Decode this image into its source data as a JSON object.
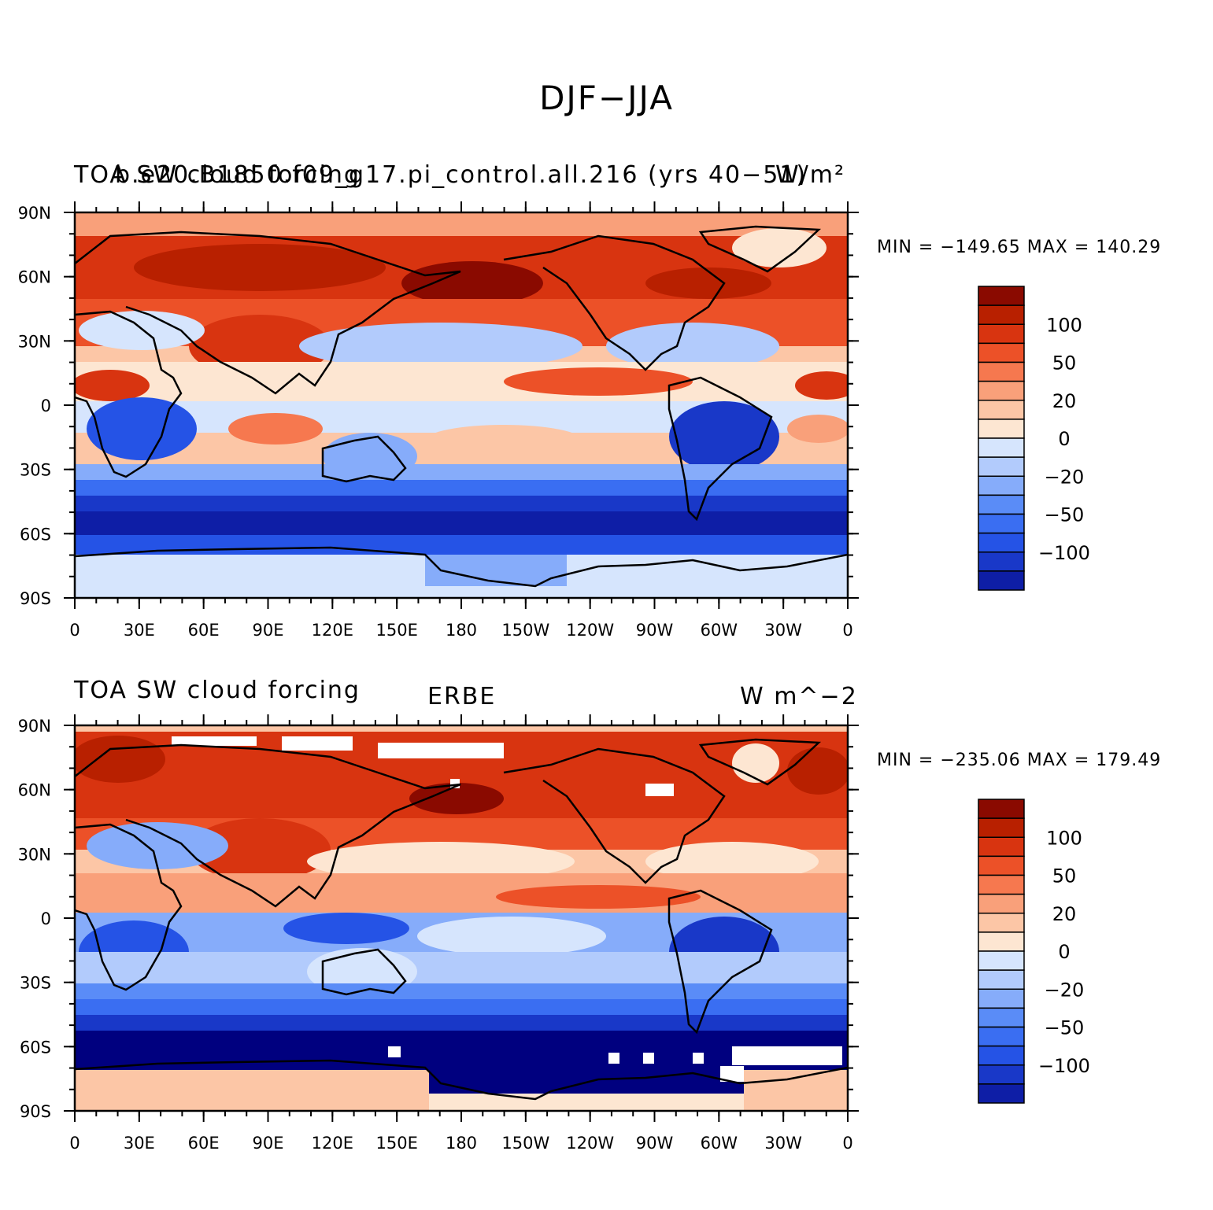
{
  "title": "DJF−JJA",
  "colors": {
    "levels": [
      "#00007f",
      "#0e1ea6",
      "#1938c8",
      "#2553e6",
      "#3a6ef2",
      "#5a8cf7",
      "#86acfa",
      "#b2cbfc",
      "#d6e5fd",
      "#fde6d2",
      "#fcc6a6",
      "#f9a07a",
      "#f6784f",
      "#ec5128",
      "#d83410",
      "#b82000",
      "#8a0a00"
    ]
  },
  "colorbar_labels": [
    "100",
    "50",
    "20",
    "0",
    "−20",
    "−50",
    "−100"
  ],
  "lat_ticks": [
    "90N",
    "60N",
    "30N",
    "0",
    "30S",
    "60S",
    "90S"
  ],
  "lon_ticks": [
    "0",
    "30E",
    "60E",
    "90E",
    "120E",
    "150E",
    "180",
    "150W",
    "120W",
    "90W",
    "60W",
    "30W",
    "0"
  ],
  "panels": [
    {
      "left_label": "TOA SW cloud forcing",
      "center_label": "b.e20.B1850.f09_g17.pi_control.all.216 (yrs 40−51)",
      "right_label": "W/m²",
      "minmax": "MIN = −149.65  MAX = 140.29"
    },
    {
      "left_label": "TOA SW cloud forcing",
      "center_label": "ERBE",
      "right_label": "W m^−2",
      "minmax": "MIN = −235.06  MAX = 179.49"
    }
  ]
}
